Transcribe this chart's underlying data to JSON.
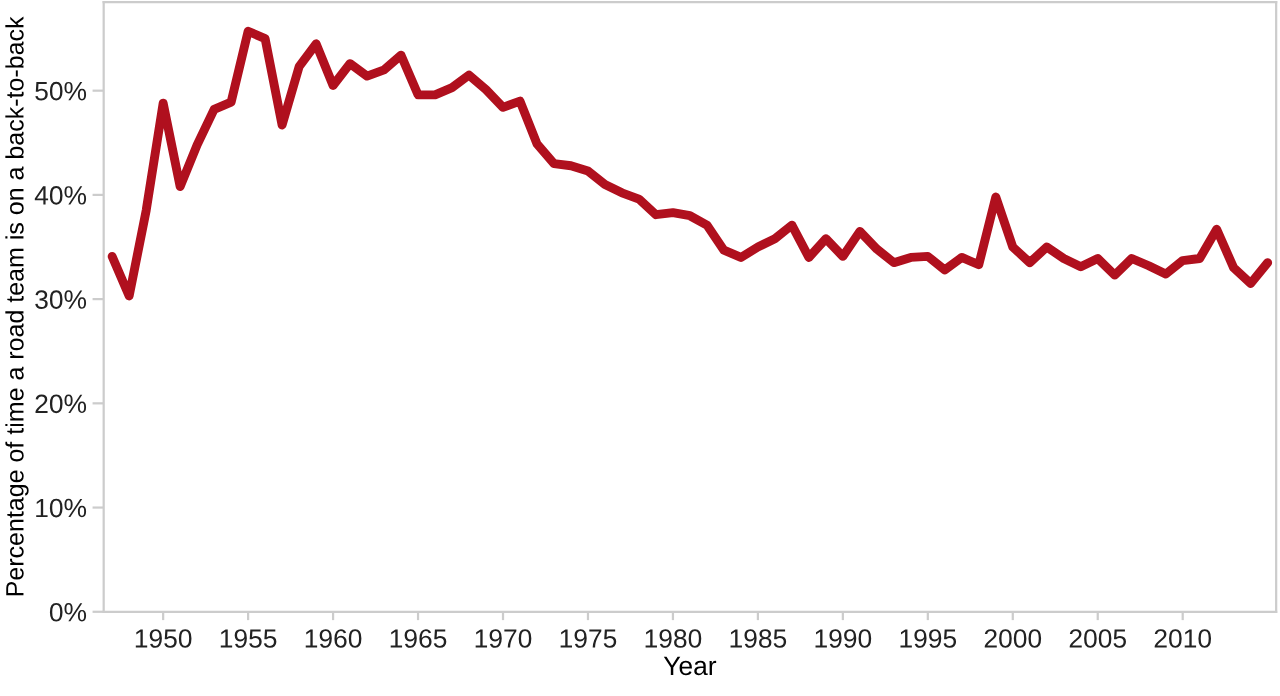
{
  "chart_data": {
    "type": "line",
    "xlabel": "Year",
    "ylabel": "Percentage of time a road team is on a back-to-back",
    "x": [
      1947,
      1948,
      1949,
      1950,
      1951,
      1952,
      1953,
      1954,
      1955,
      1956,
      1957,
      1958,
      1959,
      1960,
      1961,
      1962,
      1963,
      1964,
      1965,
      1966,
      1967,
      1968,
      1969,
      1970,
      1971,
      1972,
      1973,
      1974,
      1975,
      1976,
      1977,
      1978,
      1979,
      1980,
      1981,
      1982,
      1983,
      1984,
      1985,
      1986,
      1987,
      1988,
      1989,
      1990,
      1991,
      1992,
      1993,
      1994,
      1995,
      1996,
      1997,
      1998,
      1999,
      2000,
      2001,
      2002,
      2003,
      2004,
      2005,
      2006,
      2007,
      2008,
      2009,
      2010,
      2011,
      2012,
      2013,
      2014,
      2015
    ],
    "series": [
      {
        "color": "#b0101e",
        "values": [
          34.1,
          30.3,
          38.5,
          48.8,
          40.8,
          44.8,
          48.2,
          48.9,
          55.7,
          55.0,
          46.7,
          52.3,
          54.5,
          50.5,
          52.6,
          51.4,
          52.0,
          53.4,
          49.6,
          49.6,
          50.3,
          51.5,
          50.1,
          48.4,
          49.0,
          44.9,
          43.0,
          42.8,
          42.3,
          41.0,
          40.2,
          39.6,
          38.1,
          38.3,
          38.0,
          37.1,
          34.7,
          34.0,
          35.0,
          35.8,
          37.1,
          34.0,
          35.8,
          34.1,
          36.5,
          34.8,
          33.5,
          34.0,
          34.1,
          32.8,
          34.0,
          33.3,
          39.8,
          35.0,
          33.5,
          35.0,
          33.9,
          33.1,
          33.9,
          32.3,
          33.9,
          33.2,
          32.4,
          33.7,
          33.9,
          36.7,
          33.0,
          31.5,
          33.5
        ]
      }
    ],
    "xlim": [
      1946.5,
      2015.5
    ],
    "xticks": [
      1950,
      1955,
      1960,
      1965,
      1970,
      1975,
      1980,
      1985,
      1990,
      1995,
      2000,
      2005,
      2010
    ],
    "ylim": [
      0,
      58.5
    ],
    "yticks": [
      {
        "value": 0,
        "label": "0%"
      },
      {
        "value": 10,
        "label": "10%"
      },
      {
        "value": 20,
        "label": "20%"
      },
      {
        "value": 30,
        "label": "30%"
      },
      {
        "value": 40,
        "label": "40%"
      },
      {
        "value": 50,
        "label": "50%"
      }
    ],
    "grid": false,
    "marker": "none",
    "line_style": "solid",
    "legend": false
  }
}
